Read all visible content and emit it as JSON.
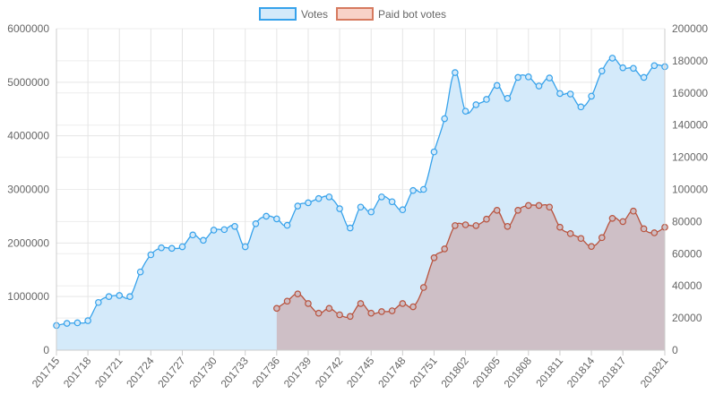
{
  "chart_data": {
    "type": "line",
    "legend_position": "top",
    "grid": true,
    "y_left": {
      "ticks": [
        "0",
        "1000000",
        "2000000",
        "3000000",
        "4000000",
        "5000000",
        "6000000"
      ],
      "range": [
        0,
        6000000
      ]
    },
    "y_right": {
      "ticks": [
        "0",
        "20000",
        "40000",
        "60000",
        "80000",
        "100000",
        "120000",
        "140000",
        "160000",
        "180000",
        "200000"
      ],
      "range": [
        0,
        200000
      ]
    },
    "x_tick_labels": [
      "201715",
      "201718",
      "201721",
      "201724",
      "201727",
      "201730",
      "201733",
      "201736",
      "201739",
      "201742",
      "201745",
      "201748",
      "201751",
      "201802",
      "201805",
      "201808",
      "201811",
      "201814",
      "201817",
      "201821"
    ],
    "x": [
      "201715",
      "201716",
      "201717",
      "201718",
      "201719",
      "201720",
      "201721",
      "201722",
      "201723",
      "201724",
      "201725",
      "201726",
      "201727",
      "201728",
      "201729",
      "201730",
      "201731",
      "201732",
      "201733",
      "201734",
      "201735",
      "201736",
      "201737",
      "201738",
      "201739",
      "201740",
      "201741",
      "201742",
      "201743",
      "201744",
      "201745",
      "201746",
      "201747",
      "201748",
      "201749",
      "201750",
      "201751",
      "201752",
      "201801",
      "201802",
      "201803",
      "201804",
      "201805",
      "201806",
      "201807",
      "201808",
      "201809",
      "201810",
      "201811",
      "201812",
      "201813",
      "201814",
      "201815",
      "201816",
      "201817",
      "201818",
      "201819",
      "201820",
      "201821"
    ],
    "series": [
      {
        "name": "Votes",
        "axis": "left",
        "color": "#36a2eb",
        "fill": "#d4eafa",
        "values": [
          460000,
          500000,
          510000,
          550000,
          890000,
          1000000,
          1020000,
          1000000,
          1460000,
          1780000,
          1910000,
          1900000,
          1930000,
          2150000,
          2050000,
          2240000,
          2250000,
          2310000,
          1930000,
          2360000,
          2500000,
          2450000,
          2330000,
          2690000,
          2750000,
          2830000,
          2860000,
          2640000,
          2280000,
          2670000,
          2580000,
          2860000,
          2770000,
          2620000,
          2980000,
          3000000,
          3700000,
          4320000,
          5180000,
          4460000,
          4580000,
          4680000,
          4940000,
          4700000,
          5090000,
          5100000,
          4930000,
          5080000,
          4790000,
          4780000,
          4540000,
          4740000,
          5210000,
          5450000,
          5270000,
          5260000,
          5090000,
          5310000,
          5290000
        ]
      },
      {
        "name": "Paid bot votes",
        "axis": "right",
        "color": "#b9533e",
        "fill": "#cdbdc3",
        "values": [
          null,
          null,
          null,
          null,
          null,
          null,
          null,
          null,
          null,
          null,
          null,
          null,
          null,
          null,
          null,
          null,
          null,
          null,
          null,
          null,
          null,
          26000,
          30500,
          35000,
          29000,
          23000,
          26000,
          22000,
          21000,
          29000,
          23000,
          24000,
          24500,
          29000,
          27000,
          39000,
          57500,
          63000,
          77500,
          78000,
          77500,
          81500,
          87000,
          77000,
          87000,
          90000,
          90000,
          89000,
          76500,
          72500,
          69500,
          64500,
          70000,
          82000,
          80000,
          86500,
          75500,
          73000,
          76500
        ]
      }
    ]
  }
}
